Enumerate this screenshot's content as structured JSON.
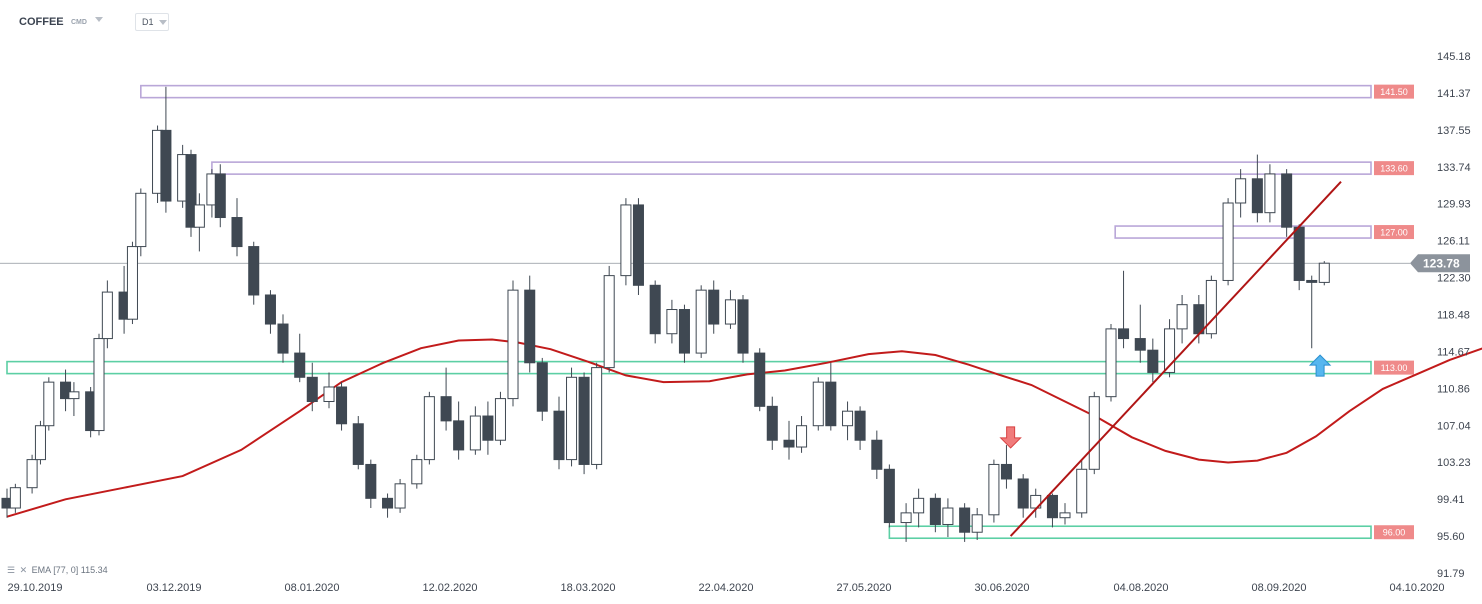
{
  "toolbar": {
    "symbol": "COFFEE",
    "category": "CMD",
    "timeframe": "D1"
  },
  "legend": {
    "ema_label": "EMA",
    "ema_params": "[77, 0]",
    "ema_value": "115.34"
  },
  "colors": {
    "bull": "#ffffff",
    "bear": "#3f4852",
    "ema": "#c21b1b",
    "trendline": "#b01515",
    "resistance": "#b9a7d8",
    "support": "#5ccfa4",
    "resistance_tag": "#ef8a8a",
    "support_tag": "#ef8a8a",
    "price_tag": "#8c939c"
  },
  "chart_data": {
    "type": "candlestick",
    "ylim": [
      91.79,
      147.1
    ],
    "y_ticks": [
      "145.18",
      "141.37",
      "137.55",
      "133.74",
      "129.93",
      "126.11",
      "122.30",
      "118.48",
      "114.67",
      "110.86",
      "107.04",
      "103.23",
      "99.41",
      "95.60",
      "91.79"
    ],
    "x_ticks": [
      "29.10.2019",
      "03.12.2019",
      "08.01.2020",
      "12.02.2020",
      "18.03.2020",
      "22.04.2020",
      "27.05.2020",
      "30.06.2020",
      "04.08.2020",
      "08.09.2020",
      "04.10.2020"
    ],
    "last_price": "123.78",
    "levels": [
      {
        "value": 141.5,
        "label": "141.50",
        "kind": "resistance",
        "from": "30.11.2019"
      },
      {
        "value": 133.6,
        "label": "133.60",
        "kind": "resistance",
        "from": "17.12.2019"
      },
      {
        "value": 127.0,
        "label": "127.00",
        "kind": "resistance",
        "from": "20.07.2020"
      },
      {
        "value": 113.0,
        "label": "113.00",
        "kind": "support",
        "from": "29.10.2019"
      },
      {
        "value": 96.0,
        "label": "96.00",
        "kind": "support",
        "from": "27.05.2020"
      }
    ],
    "trendline": [
      {
        "x": "25.06.2020",
        "y": 95.6
      },
      {
        "x": "12.09.2020",
        "y": 132.2
      }
    ],
    "markers": [
      {
        "type": "arrow-down",
        "x": "25.06.2020",
        "y": 104.5
      },
      {
        "type": "arrow-up",
        "x": "07.09.2020",
        "y": 114.5
      }
    ],
    "ema_points": [
      {
        "x": "29.10.2019",
        "y": 97.6
      },
      {
        "x": "12.11.2019",
        "y": 99.4
      },
      {
        "x": "26.11.2019",
        "y": 100.6
      },
      {
        "x": "10.12.2019",
        "y": 101.8
      },
      {
        "x": "24.12.2019",
        "y": 104.5
      },
      {
        "x": "07.01.2020",
        "y": 108.5
      },
      {
        "x": "17.01.2020",
        "y": 111.5
      },
      {
        "x": "27.01.2020",
        "y": 113.5
      },
      {
        "x": "05.02.2020",
        "y": 115.0
      },
      {
        "x": "14.02.2020",
        "y": 115.8
      },
      {
        "x": "22.02.2020",
        "y": 115.9
      },
      {
        "x": "28.02.2020",
        "y": 115.6
      },
      {
        "x": "07.03.2020",
        "y": 114.9
      },
      {
        "x": "16.03.2020",
        "y": 113.6
      },
      {
        "x": "25.03.2020",
        "y": 112.2
      },
      {
        "x": "03.04.2020",
        "y": 111.5
      },
      {
        "x": "14.04.2020",
        "y": 111.6
      },
      {
        "x": "23.04.2020",
        "y": 112.3
      },
      {
        "x": "02.05.2020",
        "y": 112.7
      },
      {
        "x": "12.05.2020",
        "y": 113.5
      },
      {
        "x": "22.05.2020",
        "y": 114.4
      },
      {
        "x": "30.05.2020",
        "y": 114.7
      },
      {
        "x": "07.06.2020",
        "y": 114.3
      },
      {
        "x": "15.06.2020",
        "y": 113.3
      },
      {
        "x": "22.06.2020",
        "y": 112.3
      },
      {
        "x": "30.06.2020",
        "y": 111.2
      },
      {
        "x": "08.07.2020",
        "y": 109.5
      },
      {
        "x": "16.07.2020",
        "y": 107.8
      },
      {
        "x": "24.07.2020",
        "y": 105.8
      },
      {
        "x": "01.08.2020",
        "y": 104.4
      },
      {
        "x": "09.08.2020",
        "y": 103.5
      },
      {
        "x": "16.08.2020",
        "y": 103.2
      },
      {
        "x": "23.08.2020",
        "y": 103.4
      },
      {
        "x": "30.08.2020",
        "y": 104.2
      },
      {
        "x": "06.09.2020",
        "y": 105.9
      },
      {
        "x": "14.09.2020",
        "y": 108.5
      },
      {
        "x": "22.09.2020",
        "y": 110.8
      },
      {
        "x": "30.09.2020",
        "y": 112.3
      },
      {
        "x": "08.10.2020",
        "y": 113.8
      },
      {
        "x": "16.10.2020",
        "y": 115.0
      },
      {
        "x": "20.10.2020",
        "y": 115.3
      }
    ],
    "candles": [
      {
        "x": "29.10.2019",
        "o": 99.5,
        "h": 100.5,
        "l": 97.5,
        "c": 98.5
      },
      {
        "x": "31.10.2019",
        "o": 98.5,
        "h": 101.0,
        "l": 98.0,
        "c": 100.6
      },
      {
        "x": "04.11.2019",
        "o": 100.6,
        "h": 104.0,
        "l": 100.0,
        "c": 103.5
      },
      {
        "x": "06.11.2019",
        "o": 103.5,
        "h": 107.5,
        "l": 103.0,
        "c": 107.0
      },
      {
        "x": "08.11.2019",
        "o": 107.0,
        "h": 112.0,
        "l": 106.5,
        "c": 111.5
      },
      {
        "x": "12.11.2019",
        "o": 111.5,
        "h": 112.8,
        "l": 108.5,
        "c": 109.8
      },
      {
        "x": "14.11.2019",
        "o": 109.8,
        "h": 111.5,
        "l": 108.0,
        "c": 110.5
      },
      {
        "x": "18.11.2019",
        "o": 110.5,
        "h": 111.0,
        "l": 105.8,
        "c": 106.5
      },
      {
        "x": "20.11.2019",
        "o": 106.5,
        "h": 116.5,
        "l": 106.0,
        "c": 116.0
      },
      {
        "x": "22.11.2019",
        "o": 116.0,
        "h": 122.0,
        "l": 115.0,
        "c": 120.8
      },
      {
        "x": "26.11.2019",
        "o": 120.8,
        "h": 123.5,
        "l": 116.5,
        "c": 118.0
      },
      {
        "x": "28.11.2019",
        "o": 118.0,
        "h": 126.0,
        "l": 117.5,
        "c": 125.5
      },
      {
        "x": "30.11.2019",
        "o": 125.5,
        "h": 131.5,
        "l": 124.5,
        "c": 131.0
      },
      {
        "x": "04.12.2019",
        "o": 131.0,
        "h": 138.0,
        "l": 130.0,
        "c": 137.5
      },
      {
        "x": "06.12.2019",
        "o": 137.5,
        "h": 142.0,
        "l": 129.0,
        "c": 130.2
      },
      {
        "x": "10.12.2019",
        "o": 130.2,
        "h": 136.0,
        "l": 129.5,
        "c": 135.0
      },
      {
        "x": "12.12.2019",
        "o": 135.0,
        "h": 135.5,
        "l": 126.5,
        "c": 127.5
      },
      {
        "x": "14.12.2019",
        "o": 127.5,
        "h": 131.0,
        "l": 125.0,
        "c": 129.8
      },
      {
        "x": "17.12.2019",
        "o": 129.8,
        "h": 133.5,
        "l": 128.5,
        "c": 133.0
      },
      {
        "x": "19.12.2019",
        "o": 133.0,
        "h": 134.0,
        "l": 127.5,
        "c": 128.5
      },
      {
        "x": "23.12.2019",
        "o": 128.5,
        "h": 130.5,
        "l": 124.5,
        "c": 125.5
      },
      {
        "x": "27.12.2019",
        "o": 125.5,
        "h": 126.0,
        "l": 119.5,
        "c": 120.5
      },
      {
        "x": "31.12.2019",
        "o": 120.5,
        "h": 121.0,
        "l": 116.5,
        "c": 117.5
      },
      {
        "x": "03.01.2020",
        "o": 117.5,
        "h": 118.5,
        "l": 113.5,
        "c": 114.5
      },
      {
        "x": "07.01.2020",
        "o": 114.5,
        "h": 116.5,
        "l": 111.5,
        "c": 112.0
      },
      {
        "x": "10.01.2020",
        "o": 112.0,
        "h": 113.5,
        "l": 108.5,
        "c": 109.5
      },
      {
        "x": "14.01.2020",
        "o": 109.5,
        "h": 112.5,
        "l": 108.8,
        "c": 111.0
      },
      {
        "x": "17.01.2020",
        "o": 111.0,
        "h": 111.5,
        "l": 106.5,
        "c": 107.2
      },
      {
        "x": "21.01.2020",
        "o": 107.2,
        "h": 108.0,
        "l": 102.5,
        "c": 103.0
      },
      {
        "x": "24.01.2020",
        "o": 103.0,
        "h": 103.5,
        "l": 98.5,
        "c": 99.5
      },
      {
        "x": "28.01.2020",
        "o": 99.5,
        "h": 100.0,
        "l": 97.5,
        "c": 98.5
      },
      {
        "x": "31.01.2020",
        "o": 98.5,
        "h": 101.5,
        "l": 98.0,
        "c": 101.0
      },
      {
        "x": "04.02.2020",
        "o": 101.0,
        "h": 104.0,
        "l": 100.5,
        "c": 103.5
      },
      {
        "x": "07.02.2020",
        "o": 103.5,
        "h": 110.5,
        "l": 103.0,
        "c": 110.0
      },
      {
        "x": "11.02.2020",
        "o": 110.0,
        "h": 113.0,
        "l": 106.5,
        "c": 107.5
      },
      {
        "x": "14.02.2020",
        "o": 107.5,
        "h": 109.5,
        "l": 103.5,
        "c": 104.5
      },
      {
        "x": "18.02.2020",
        "o": 104.5,
        "h": 109.0,
        "l": 104.0,
        "c": 108.0
      },
      {
        "x": "21.02.2020",
        "o": 108.0,
        "h": 109.5,
        "l": 104.0,
        "c": 105.5
      },
      {
        "x": "24.02.2020",
        "o": 105.5,
        "h": 110.5,
        "l": 105.0,
        "c": 109.8
      },
      {
        "x": "27.02.2020",
        "o": 109.8,
        "h": 122.0,
        "l": 109.0,
        "c": 121.0
      },
      {
        "x": "02.03.2020",
        "o": 121.0,
        "h": 122.5,
        "l": 112.5,
        "c": 113.5
      },
      {
        "x": "05.03.2020",
        "o": 113.5,
        "h": 114.0,
        "l": 107.5,
        "c": 108.5
      },
      {
        "x": "09.03.2020",
        "o": 108.5,
        "h": 110.0,
        "l": 102.5,
        "c": 103.5
      },
      {
        "x": "12.03.2020",
        "o": 103.5,
        "h": 113.0,
        "l": 102.8,
        "c": 112.0
      },
      {
        "x": "15.03.2020",
        "o": 112.0,
        "h": 112.5,
        "l": 102.0,
        "c": 103.0
      },
      {
        "x": "18.03.2020",
        "o": 103.0,
        "h": 113.5,
        "l": 102.5,
        "c": 113.0
      },
      {
        "x": "21.03.2020",
        "o": 113.0,
        "h": 123.5,
        "l": 112.5,
        "c": 122.5
      },
      {
        "x": "25.03.2020",
        "o": 122.5,
        "h": 130.5,
        "l": 121.5,
        "c": 129.8
      },
      {
        "x": "28.03.2020",
        "o": 129.8,
        "h": 130.5,
        "l": 120.5,
        "c": 121.5
      },
      {
        "x": "01.04.2020",
        "o": 121.5,
        "h": 122.0,
        "l": 115.5,
        "c": 116.5
      },
      {
        "x": "05.04.2020",
        "o": 116.5,
        "h": 120.0,
        "l": 115.5,
        "c": 119.0
      },
      {
        "x": "08.04.2020",
        "o": 119.0,
        "h": 119.5,
        "l": 113.5,
        "c": 114.5
      },
      {
        "x": "12.04.2020",
        "o": 114.5,
        "h": 121.5,
        "l": 114.0,
        "c": 121.0
      },
      {
        "x": "15.04.2020",
        "o": 121.0,
        "h": 122.0,
        "l": 116.5,
        "c": 117.5
      },
      {
        "x": "19.04.2020",
        "o": 117.5,
        "h": 121.0,
        "l": 117.0,
        "c": 120.0
      },
      {
        "x": "22.04.2020",
        "o": 120.0,
        "h": 120.5,
        "l": 113.5,
        "c": 114.5
      },
      {
        "x": "26.04.2020",
        "o": 114.5,
        "h": 115.0,
        "l": 108.5,
        "c": 109.0
      },
      {
        "x": "29.04.2020",
        "o": 109.0,
        "h": 110.0,
        "l": 104.5,
        "c": 105.5
      },
      {
        "x": "03.05.2020",
        "o": 105.5,
        "h": 107.5,
        "l": 103.5,
        "c": 104.8
      },
      {
        "x": "06.05.2020",
        "o": 104.8,
        "h": 108.0,
        "l": 104.2,
        "c": 107.0
      },
      {
        "x": "10.05.2020",
        "o": 107.0,
        "h": 112.0,
        "l": 106.5,
        "c": 111.5
      },
      {
        "x": "13.05.2020",
        "o": 111.5,
        "h": 113.5,
        "l": 106.5,
        "c": 107.0
      },
      {
        "x": "17.05.2020",
        "o": 107.0,
        "h": 109.5,
        "l": 105.5,
        "c": 108.5
      },
      {
        "x": "20.05.2020",
        "o": 108.5,
        "h": 109.0,
        "l": 104.5,
        "c": 105.5
      },
      {
        "x": "24.05.2020",
        "o": 105.5,
        "h": 106.5,
        "l": 101.5,
        "c": 102.5
      },
      {
        "x": "27.05.2020",
        "o": 102.5,
        "h": 103.0,
        "l": 96.5,
        "c": 97.0
      },
      {
        "x": "31.05.2020",
        "o": 97.0,
        "h": 99.0,
        "l": 95.0,
        "c": 98.0
      },
      {
        "x": "03.06.2020",
        "o": 98.0,
        "h": 100.5,
        "l": 96.5,
        "c": 99.5
      },
      {
        "x": "07.06.2020",
        "o": 99.5,
        "h": 100.0,
        "l": 96.0,
        "c": 96.8
      },
      {
        "x": "10.06.2020",
        "o": 96.8,
        "h": 99.5,
        "l": 95.5,
        "c": 98.5
      },
      {
        "x": "14.06.2020",
        "o": 98.5,
        "h": 99.0,
        "l": 95.0,
        "c": 96.0
      },
      {
        "x": "17.06.2020",
        "o": 96.0,
        "h": 98.5,
        "l": 95.2,
        "c": 97.8
      },
      {
        "x": "21.06.2020",
        "o": 97.8,
        "h": 103.5,
        "l": 97.0,
        "c": 103.0
      },
      {
        "x": "24.06.2020",
        "o": 103.0,
        "h": 105.0,
        "l": 100.5,
        "c": 101.5
      },
      {
        "x": "28.06.2020",
        "o": 101.5,
        "h": 102.0,
        "l": 97.5,
        "c": 98.5
      },
      {
        "x": "01.07.2020",
        "o": 98.5,
        "h": 100.5,
        "l": 97.5,
        "c": 99.8
      },
      {
        "x": "05.07.2020",
        "o": 99.8,
        "h": 100.0,
        "l": 96.5,
        "c": 97.5
      },
      {
        "x": "08.07.2020",
        "o": 97.5,
        "h": 99.0,
        "l": 96.8,
        "c": 98.0
      },
      {
        "x": "12.07.2020",
        "o": 98.0,
        "h": 103.5,
        "l": 97.5,
        "c": 102.5
      },
      {
        "x": "15.07.2020",
        "o": 102.5,
        "h": 110.5,
        "l": 102.0,
        "c": 110.0
      },
      {
        "x": "19.07.2020",
        "o": 110.0,
        "h": 117.5,
        "l": 109.5,
        "c": 117.0
      },
      {
        "x": "22.07.2020",
        "o": 117.0,
        "h": 123.0,
        "l": 115.0,
        "c": 116.0
      },
      {
        "x": "26.07.2020",
        "o": 116.0,
        "h": 119.5,
        "l": 113.5,
        "c": 114.8
      },
      {
        "x": "29.07.2020",
        "o": 114.8,
        "h": 116.0,
        "l": 111.5,
        "c": 112.5
      },
      {
        "x": "02.08.2020",
        "o": 112.5,
        "h": 118.0,
        "l": 112.0,
        "c": 117.0
      },
      {
        "x": "05.08.2020",
        "o": 117.0,
        "h": 120.5,
        "l": 115.5,
        "c": 119.5
      },
      {
        "x": "09.08.2020",
        "o": 119.5,
        "h": 120.5,
        "l": 115.5,
        "c": 116.5
      },
      {
        "x": "12.08.2020",
        "o": 116.5,
        "h": 122.5,
        "l": 116.0,
        "c": 122.0
      },
      {
        "x": "16.08.2020",
        "o": 122.0,
        "h": 130.5,
        "l": 121.5,
        "c": 130.0
      },
      {
        "x": "19.08.2020",
        "o": 130.0,
        "h": 133.5,
        "l": 128.5,
        "c": 132.5
      },
      {
        "x": "23.08.2020",
        "o": 132.5,
        "h": 135.0,
        "l": 128.0,
        "c": 129.0
      },
      {
        "x": "26.08.2020",
        "o": 129.0,
        "h": 134.0,
        "l": 128.0,
        "c": 133.0
      },
      {
        "x": "30.08.2020",
        "o": 133.0,
        "h": 133.5,
        "l": 126.5,
        "c": 127.5
      },
      {
        "x": "02.09.2020",
        "o": 127.5,
        "h": 127.8,
        "l": 121.0,
        "c": 122.0
      },
      {
        "x": "05.09.2020",
        "o": 122.0,
        "h": 122.5,
        "l": 115.0,
        "c": 121.8
      },
      {
        "x": "08.09.2020",
        "o": 121.8,
        "h": 124.0,
        "l": 121.5,
        "c": 123.78
      }
    ]
  }
}
